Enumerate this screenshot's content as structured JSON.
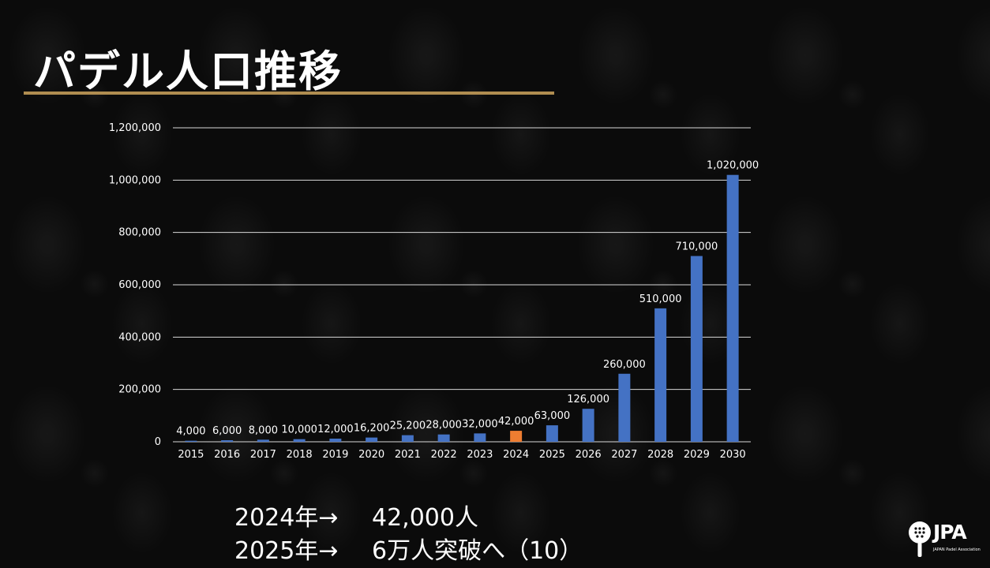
{
  "title": "パデル人口推移",
  "captions": [
    {
      "year": "2024年→",
      "text": "42,000人"
    },
    {
      "year": "2025年→",
      "text": "6万人突破へ（10）"
    }
  ],
  "logo": {
    "text": "JPA",
    "subtitle": "JAPAN Padel Association",
    "icon": "padel-racket-icon"
  },
  "colors": {
    "bar": "#4472c4",
    "highlight": "#ed7d31",
    "accent_rule": "#b08d50",
    "grid": "#d9d9d9"
  },
  "chart_data": {
    "type": "bar",
    "categories": [
      "2015",
      "2016",
      "2017",
      "2018",
      "2019",
      "2020",
      "2021",
      "2022",
      "2023",
      "2024",
      "2025",
      "2026",
      "2027",
      "2028",
      "2029",
      "2030"
    ],
    "values": [
      4000,
      6000,
      8000,
      10000,
      12000,
      16200,
      25200,
      28000,
      32000,
      42000,
      63000,
      126000,
      260000,
      510000,
      710000,
      1020000
    ],
    "data_labels": [
      "4,000",
      "6,000",
      "8,000",
      "10,000",
      "12,000",
      "16,200",
      "25,200",
      "28,000",
      "32,000",
      "42,000",
      "63,000",
      "126,000",
      "260,000",
      "510,000",
      "710,000",
      "1,020,000"
    ],
    "highlight_category": "2024",
    "ylim": [
      0,
      1200000
    ],
    "y_ticks": [
      0,
      200000,
      400000,
      600000,
      800000,
      1000000,
      1200000
    ],
    "y_tick_labels": [
      "0",
      "200,000",
      "400,000",
      "600,000",
      "800,000",
      "1,000,000",
      "1,200,000"
    ],
    "grid": true,
    "title": "",
    "xlabel": "",
    "ylabel": ""
  }
}
